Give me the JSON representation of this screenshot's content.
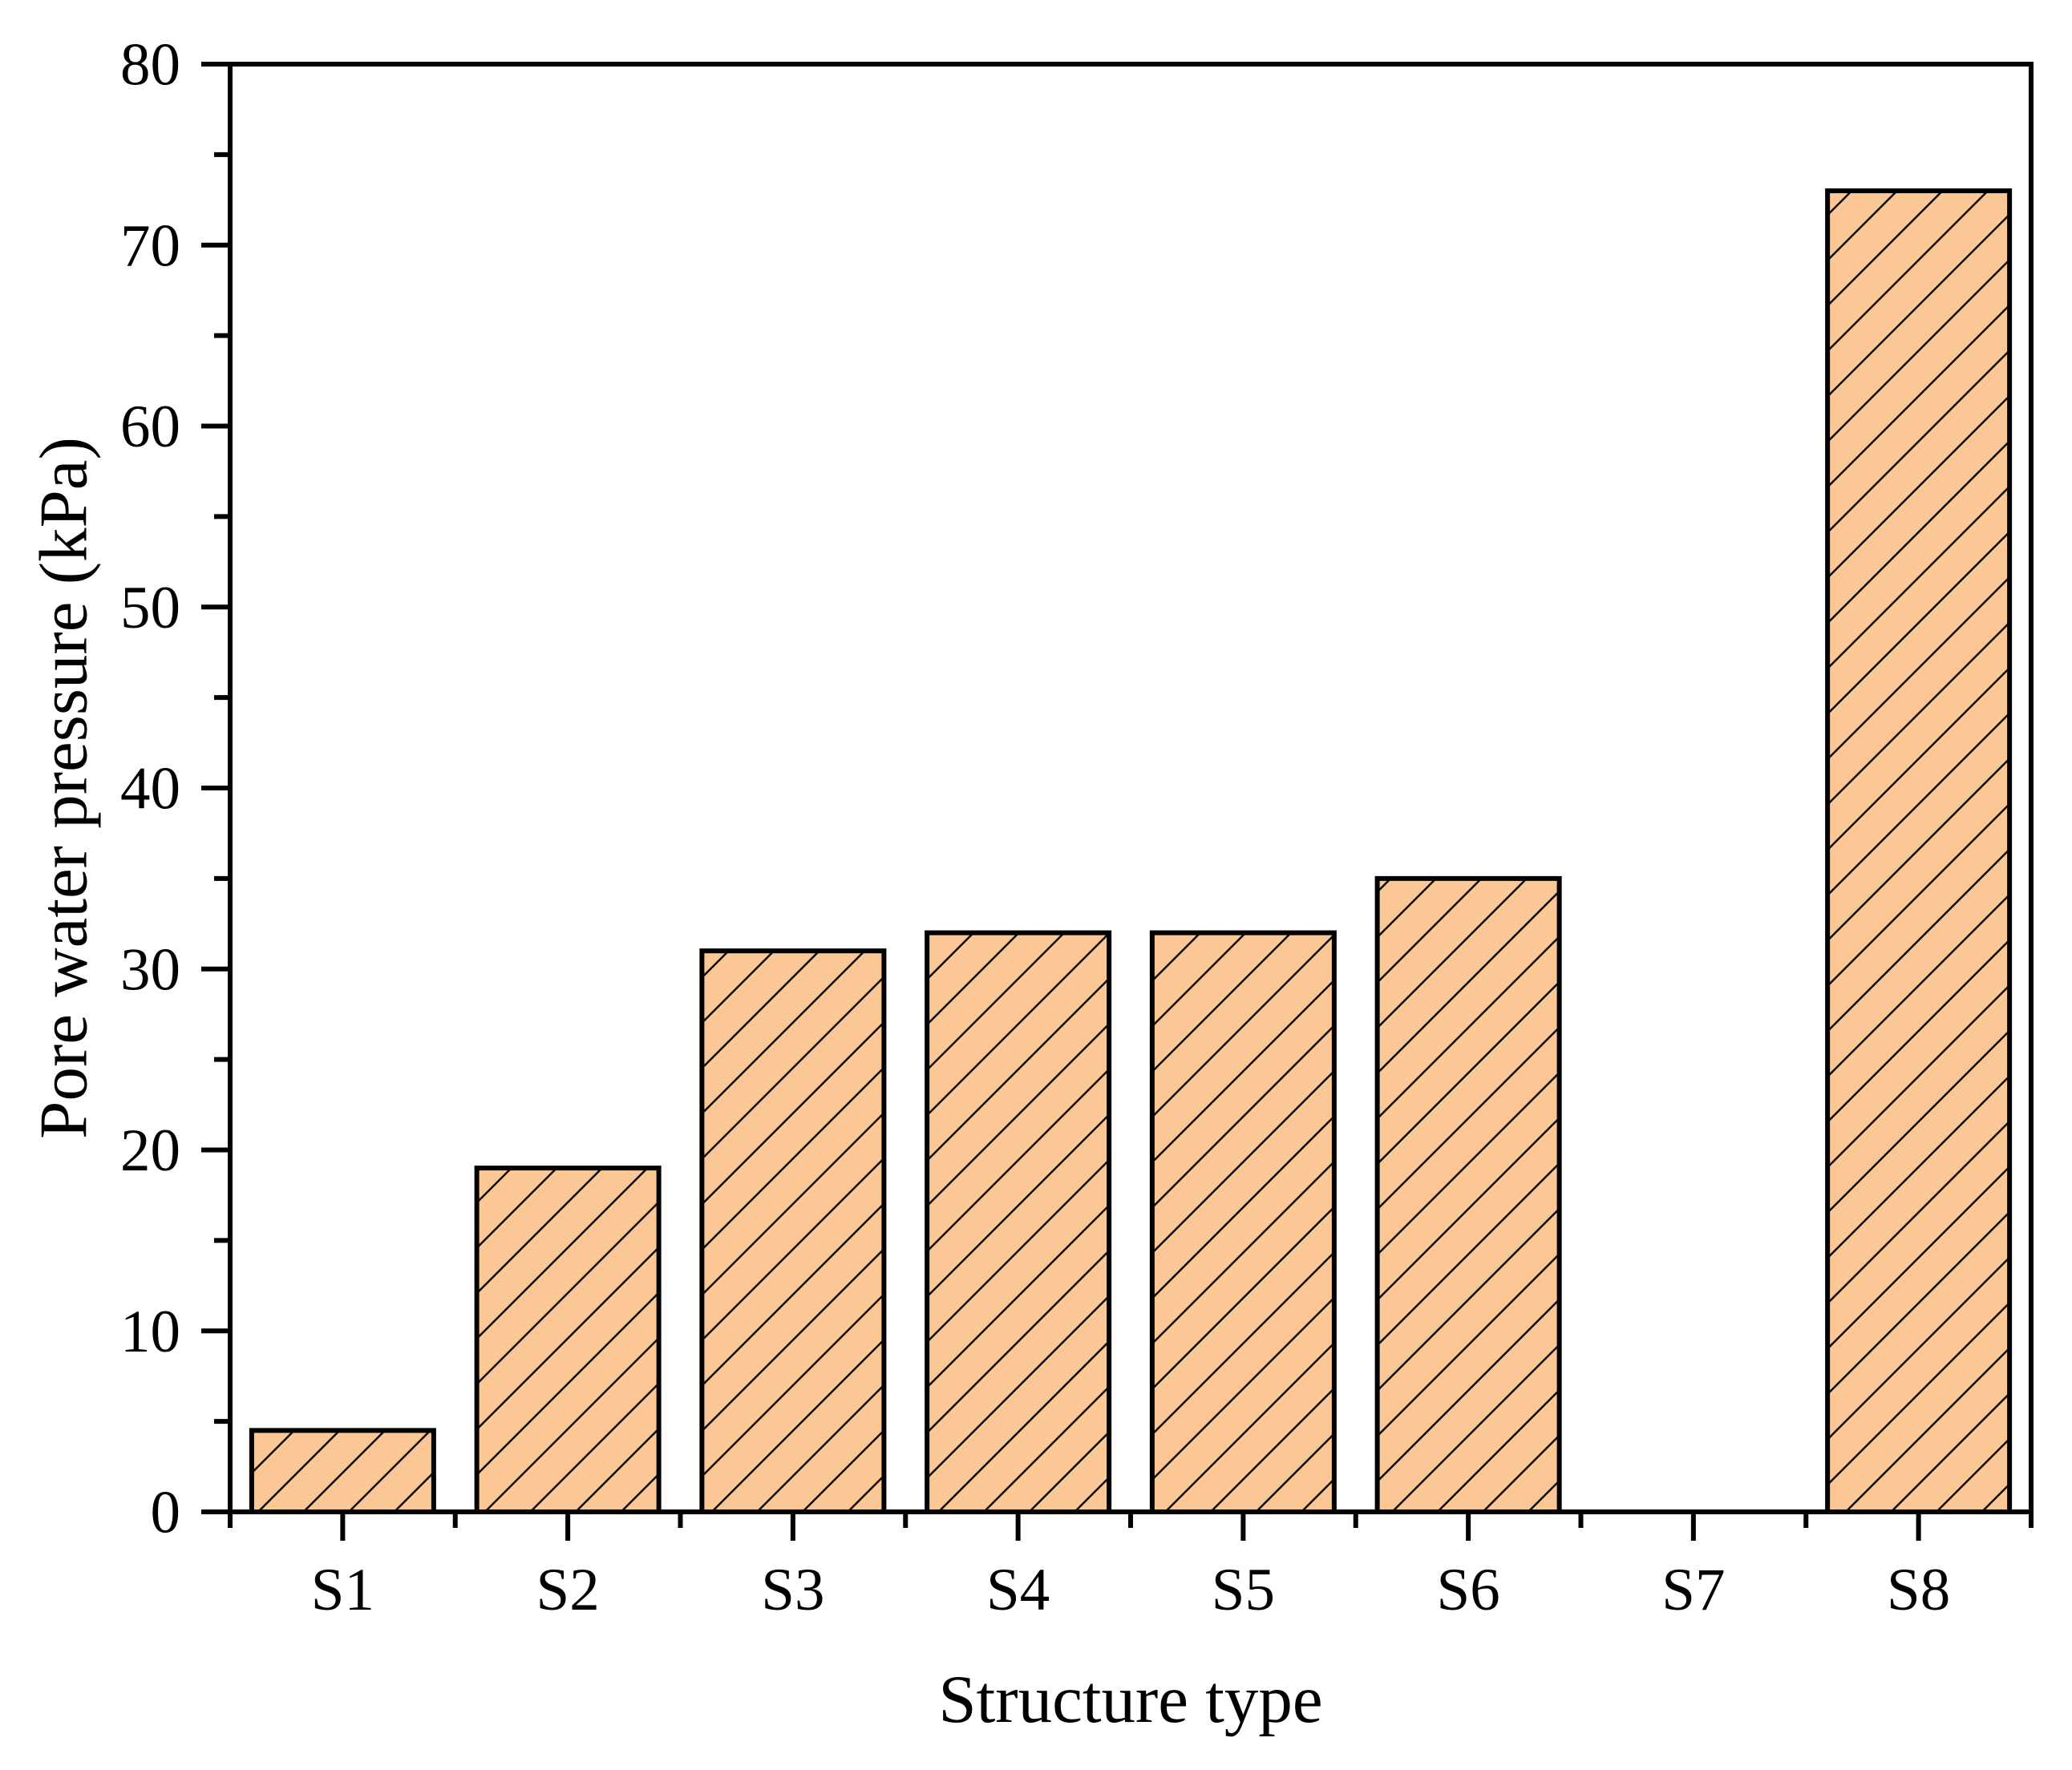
{
  "chart_data": {
    "type": "bar",
    "title": "",
    "categories": [
      "S1",
      "S2",
      "S3",
      "S4",
      "S5",
      "S6",
      "S7",
      "S8"
    ],
    "values": [
      4.5,
      19,
      31,
      32,
      32,
      35,
      0,
      73
    ],
    "xlabel": "Structure type",
    "ylabel": "Pore water pressure (kPa)",
    "ylim": [
      0,
      80
    ],
    "y_major_ticks": [
      0,
      10,
      20,
      30,
      40,
      50,
      60,
      70,
      80
    ],
    "y_minor_step": 5,
    "grid": false,
    "legend": "none",
    "frame": "full-box",
    "hatch_pattern": "forward-diagonal",
    "bar_fill_color": "#FAC795",
    "bar_edge_color": "#000000",
    "hatch_color": "#0a0a0a",
    "axis_color": "#000000",
    "text_color": "#000000",
    "background_color": "#ffffff"
  }
}
